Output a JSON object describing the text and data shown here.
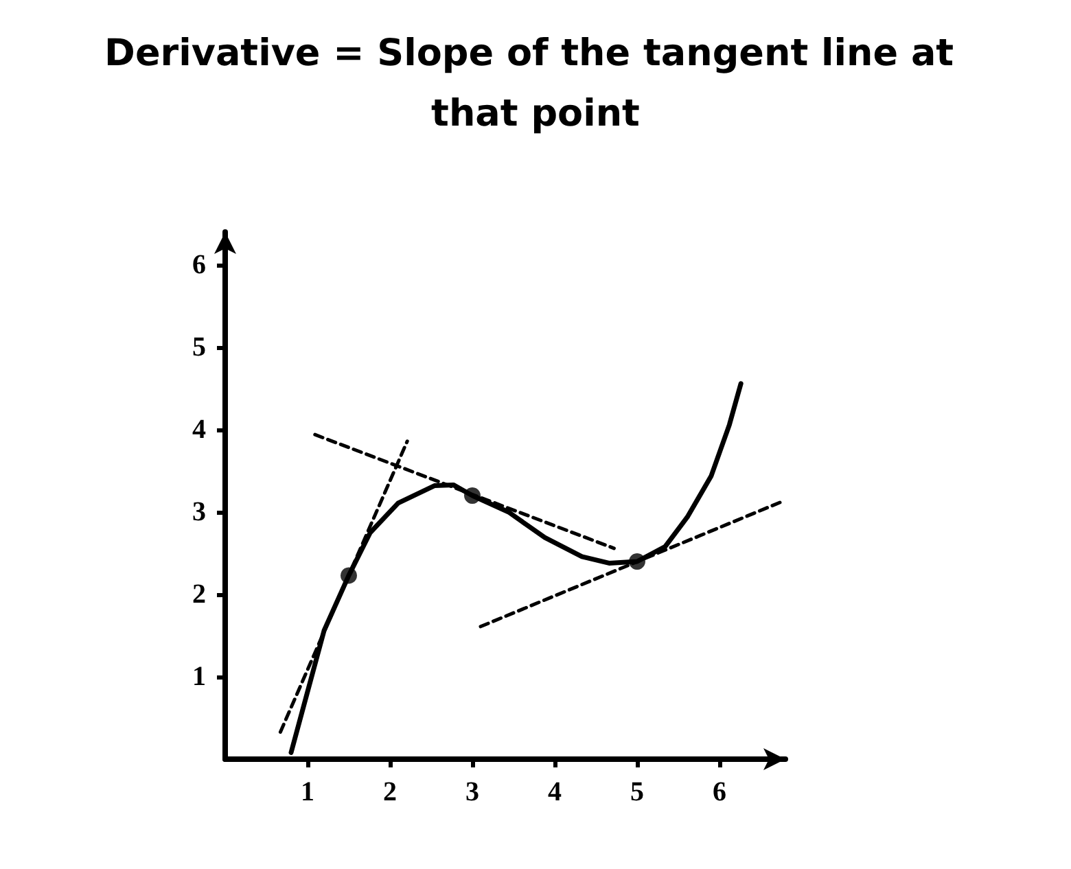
{
  "chart_data": {
    "type": "line",
    "title": "Derivative = Slope of the tangent line at that point",
    "xlim": [
      0,
      6.8
    ],
    "ylim": [
      0,
      6.4
    ],
    "xticks": [
      1,
      2,
      3,
      4,
      5,
      6
    ],
    "yticks": [
      1,
      2,
      3,
      4,
      5,
      6
    ],
    "grid": false,
    "series": [
      {
        "color": "#000000",
        "marker": "none",
        "line_style": "solid",
        "x": [
          0.8,
          1.2,
          1.5,
          1.76,
          2.1,
          2.54,
          2.77,
          3,
          3.44,
          3.88,
          4.33,
          4.66,
          5,
          5.34,
          5.61,
          5.9,
          6.12,
          6.26
        ],
        "values": [
          0.08,
          1.56,
          2.23,
          2.75,
          3.11,
          3.32,
          3.33,
          3.2,
          3.0,
          2.69,
          2.46,
          2.38,
          2.4,
          2.58,
          2.94,
          3.44,
          4.06,
          4.56
        ]
      },
      {
        "color": "#000000",
        "marker": "none",
        "line_style": "dashed",
        "x": [
          0.67,
          2.21
        ],
        "values": [
          0.33,
          3.86
        ]
      },
      {
        "color": "#000000",
        "marker": "none",
        "line_style": "dashed",
        "x": [
          1.09,
          4.72
        ],
        "values": [
          3.94,
          2.56
        ]
      },
      {
        "color": "#000000",
        "marker": "none",
        "line_style": "dashed",
        "x": [
          3.1,
          6.79
        ],
        "values": [
          1.61,
          3.14
        ]
      },
      {
        "type": "scatter",
        "color": "#000000",
        "marker": "circle",
        "x": [
          1.5,
          3,
          5
        ],
        "values": [
          2.23,
          3.2,
          2.4
        ]
      }
    ]
  }
}
